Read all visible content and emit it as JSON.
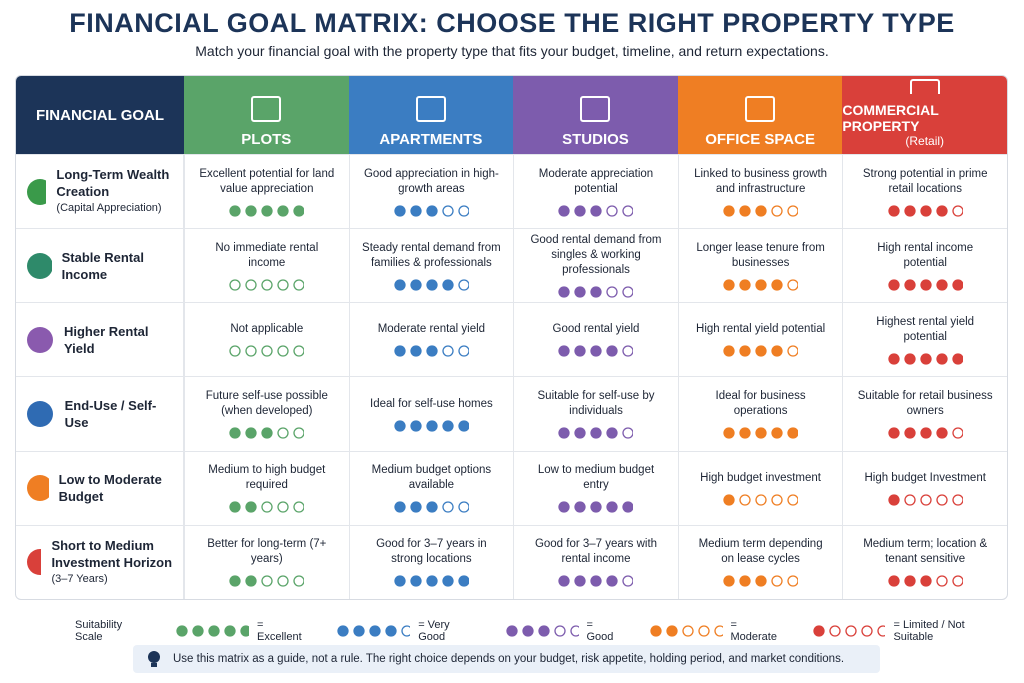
{
  "header": {
    "title": "FINANCIAL GOAL MATRIX: CHOOSE THE RIGHT PROPERTY TYPE",
    "subtitle": "Match your financial goal with the property type that fits your budget, timeline, and return expectations."
  },
  "matrix": {
    "goal_header": "FINANCIAL GOAL",
    "columns": [
      {
        "name": "PLOTS",
        "color": "#5aa469"
      },
      {
        "name": "APARTMENTS",
        "color": "#3b7dc2"
      },
      {
        "name": "STUDIOS",
        "color": "#7d5cad"
      },
      {
        "name": "OFFICE SPACE",
        "color": "#ef7e23"
      },
      {
        "name": "COMMERCIAL PROPERTY",
        "sub": "(Retail)",
        "color": "#d9403a"
      }
    ],
    "rows": [
      {
        "goal": "Long-Term Wealth Creation",
        "sub": "(Capital Appreciation)",
        "cells": [
          {
            "text": "Excellent potential for land value appreciation",
            "rating": 5
          },
          {
            "text": "Good appreciation in high-growth areas",
            "rating": 3
          },
          {
            "text": "Moderate appreciation potential",
            "rating": 3
          },
          {
            "text": "Linked to business growth and infrastructure",
            "rating": 3
          },
          {
            "text": "Strong potential in prime retail locations",
            "rating": 4
          }
        ]
      },
      {
        "goal": "Stable Rental Income",
        "cells": [
          {
            "text": "No immediate rental income",
            "rating": 0
          },
          {
            "text": "Steady rental demand from families & professionals",
            "rating": 4
          },
          {
            "text": "Good rental demand from singles & working professionals",
            "rating": 3
          },
          {
            "text": "Longer lease tenure from businesses",
            "rating": 4
          },
          {
            "text": "High rental income potential",
            "rating": 5
          }
        ]
      },
      {
        "goal": "Higher Rental Yield",
        "cells": [
          {
            "text": "Not applicable",
            "rating": 0
          },
          {
            "text": "Moderate rental yield",
            "rating": 3
          },
          {
            "text": "Good rental yield",
            "rating": 4
          },
          {
            "text": "High rental yield potential",
            "rating": 4
          },
          {
            "text": "Highest rental yield potential",
            "rating": 5
          }
        ]
      },
      {
        "goal": "End-Use / Self-Use",
        "cells": [
          {
            "text": "Future self-use possible (when developed)",
            "rating": 3
          },
          {
            "text": "Ideal for self-use homes",
            "rating": 5
          },
          {
            "text": "Suitable for self-use by individuals",
            "rating": 4
          },
          {
            "text": "Ideal for business operations",
            "rating": 5
          },
          {
            "text": "Suitable for retail business owners",
            "rating": 4
          }
        ]
      },
      {
        "goal": "Low to Moderate Budget",
        "cells": [
          {
            "text": "Medium to high budget required",
            "rating": 2
          },
          {
            "text": "Medium budget options available",
            "rating": 3
          },
          {
            "text": "Low to medium budget entry",
            "rating": 5
          },
          {
            "text": "High budget investment",
            "rating": 1
          },
          {
            "text": "High budget Investment",
            "rating": 1
          }
        ]
      },
      {
        "goal": "Short to Medium Investment Horizon",
        "sub": "(3–7 Years)",
        "cells": [
          {
            "text": "Better for long-term (7+ years)",
            "rating": 2
          },
          {
            "text": "Good for 3–7 years in strong locations",
            "rating": 5
          },
          {
            "text": "Good for 3–7 years with rental income",
            "rating": 4
          },
          {
            "text": "Medium term depending on lease cycles",
            "rating": 3
          },
          {
            "text": "Medium term; location & tenant sensitive",
            "rating": 3
          }
        ]
      }
    ]
  },
  "scale": {
    "label": "Suitability Scale",
    "levels": [
      {
        "rating": 5,
        "label": "= Excellent",
        "color": "#5aa469"
      },
      {
        "rating": 4,
        "label": "= Very Good",
        "color": "#3b7dc2"
      },
      {
        "rating": 3,
        "label": "= Good",
        "color": "#7d5cad"
      },
      {
        "rating": 2,
        "label": "= Moderate",
        "color": "#ef7e23"
      },
      {
        "rating": 1,
        "label": "= Limited / Not Suitable",
        "color": "#d9403a"
      }
    ]
  },
  "note": "Use this matrix as a guide, not a rule. The right choice depends on your budget, risk appetite, holding period, and market conditions."
}
